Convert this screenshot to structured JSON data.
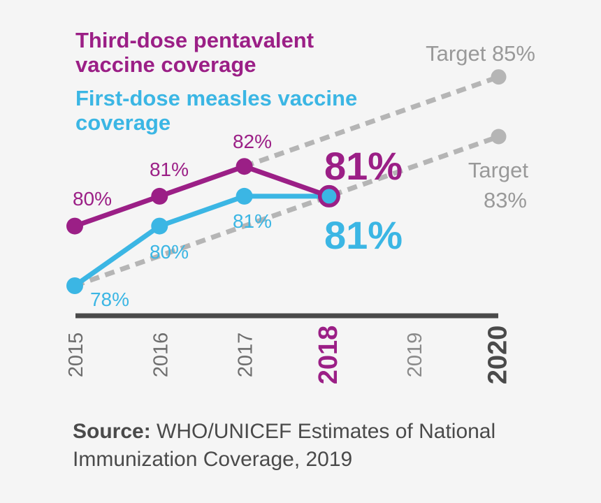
{
  "legend": {
    "purple_line1": "Third-dose pentavalent",
    "purple_line2": "vaccine coverage",
    "cyan_line1": "First-dose measles vaccine",
    "cyan_line2": "coverage"
  },
  "source": {
    "label": "Source:",
    "text": "WHO/UNICEF Estimates of National Immunization Coverage, 2019"
  },
  "colors": {
    "purple": "#9b1f86",
    "cyan": "#3bb6e4",
    "target_gray": "#b5b5b5",
    "axis": "#4a4a4a",
    "year_gray": "#8a8a8a",
    "year_2020": "#4a4a4a"
  },
  "chart_data": {
    "type": "line",
    "categories": [
      "2015",
      "2016",
      "2017",
      "2018",
      "2019",
      "2020"
    ],
    "ylim": [
      77,
      86
    ],
    "xlabel": "",
    "ylabel": "",
    "highlight_year": "2018",
    "series": [
      {
        "name": "Third-dose pentavalent vaccine coverage",
        "color": "#9b1f86",
        "x": [
          "2015",
          "2016",
          "2017",
          "2018"
        ],
        "values": [
          80,
          81,
          82,
          81
        ],
        "labels": [
          "80%",
          "81%",
          "82%",
          "81%"
        ]
      },
      {
        "name": "First-dose measles vaccine coverage",
        "color": "#3bb6e4",
        "x": [
          "2015",
          "2016",
          "2017",
          "2018"
        ],
        "values": [
          78,
          80,
          81,
          81
        ],
        "labels": [
          "78%",
          "80%",
          "81%",
          "81%"
        ]
      }
    ],
    "targets": [
      {
        "name": "Target 85%",
        "from": [
          "2017",
          82
        ],
        "to": [
          "2020",
          85
        ],
        "label_line1": "Target 85%",
        "label_line2": ""
      },
      {
        "name": "Target 83%",
        "from": [
          "2015",
          78
        ],
        "to": [
          "2020",
          83
        ],
        "label_line1": "Target",
        "label_line2": "83%"
      }
    ]
  }
}
